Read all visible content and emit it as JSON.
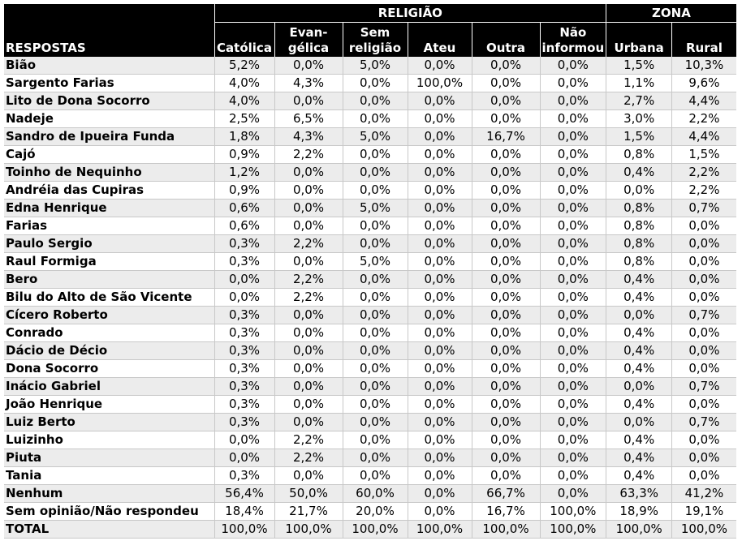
{
  "header": {
    "respostas": "RESPOSTAS",
    "religiao": "RELIGIÃO",
    "zona": "ZONA",
    "columns": [
      [
        "Católica"
      ],
      [
        "Evan-",
        "gélica"
      ],
      [
        "Sem",
        "religião"
      ],
      [
        "Ateu"
      ],
      [
        "Outra"
      ],
      [
        "Não",
        "informou"
      ],
      [
        "Urbana"
      ],
      [
        "Rural"
      ]
    ]
  },
  "rows": [
    {
      "label": "Bião",
      "values": [
        "5,2%",
        "0,0%",
        "5,0%",
        "0,0%",
        "0,0%",
        "0,0%",
        "1,5%",
        "10,3%"
      ]
    },
    {
      "label": "Sargento Farias",
      "values": [
        "4,0%",
        "4,3%",
        "0,0%",
        "100,0%",
        "0,0%",
        "0,0%",
        "1,1%",
        "9,6%"
      ]
    },
    {
      "label": "Lito de Dona Socorro",
      "values": [
        "4,0%",
        "0,0%",
        "0,0%",
        "0,0%",
        "0,0%",
        "0,0%",
        "2,7%",
        "4,4%"
      ]
    },
    {
      "label": "Nadeje",
      "values": [
        "2,5%",
        "6,5%",
        "0,0%",
        "0,0%",
        "0,0%",
        "0,0%",
        "3,0%",
        "2,2%"
      ]
    },
    {
      "label": "Sandro de Ipueira Funda",
      "values": [
        "1,8%",
        "4,3%",
        "5,0%",
        "0,0%",
        "16,7%",
        "0,0%",
        "1,5%",
        "4,4%"
      ]
    },
    {
      "label": "Cajó",
      "values": [
        "0,9%",
        "2,2%",
        "0,0%",
        "0,0%",
        "0,0%",
        "0,0%",
        "0,8%",
        "1,5%"
      ]
    },
    {
      "label": "Toinho de Nequinho",
      "values": [
        "1,2%",
        "0,0%",
        "0,0%",
        "0,0%",
        "0,0%",
        "0,0%",
        "0,4%",
        "2,2%"
      ]
    },
    {
      "label": "Andréia das Cupiras",
      "values": [
        "0,9%",
        "0,0%",
        "0,0%",
        "0,0%",
        "0,0%",
        "0,0%",
        "0,0%",
        "2,2%"
      ]
    },
    {
      "label": "Edna Henrique",
      "values": [
        "0,6%",
        "0,0%",
        "5,0%",
        "0,0%",
        "0,0%",
        "0,0%",
        "0,8%",
        "0,7%"
      ]
    },
    {
      "label": "Farias",
      "values": [
        "0,6%",
        "0,0%",
        "0,0%",
        "0,0%",
        "0,0%",
        "0,0%",
        "0,8%",
        "0,0%"
      ]
    },
    {
      "label": "Paulo Sergio",
      "values": [
        "0,3%",
        "2,2%",
        "0,0%",
        "0,0%",
        "0,0%",
        "0,0%",
        "0,8%",
        "0,0%"
      ]
    },
    {
      "label": "Raul Formiga",
      "values": [
        "0,3%",
        "0,0%",
        "5,0%",
        "0,0%",
        "0,0%",
        "0,0%",
        "0,8%",
        "0,0%"
      ]
    },
    {
      "label": "Bero",
      "values": [
        "0,0%",
        "2,2%",
        "0,0%",
        "0,0%",
        "0,0%",
        "0,0%",
        "0,4%",
        "0,0%"
      ]
    },
    {
      "label": "Bilu do Alto de São Vicente",
      "values": [
        "0,0%",
        "2,2%",
        "0,0%",
        "0,0%",
        "0,0%",
        "0,0%",
        "0,4%",
        "0,0%"
      ]
    },
    {
      "label": "Cícero Roberto",
      "values": [
        "0,3%",
        "0,0%",
        "0,0%",
        "0,0%",
        "0,0%",
        "0,0%",
        "0,0%",
        "0,7%"
      ]
    },
    {
      "label": "Conrado",
      "values": [
        "0,3%",
        "0,0%",
        "0,0%",
        "0,0%",
        "0,0%",
        "0,0%",
        "0,4%",
        "0,0%"
      ]
    },
    {
      "label": "Dácio de Décio",
      "values": [
        "0,3%",
        "0,0%",
        "0,0%",
        "0,0%",
        "0,0%",
        "0,0%",
        "0,4%",
        "0,0%"
      ]
    },
    {
      "label": "Dona Socorro",
      "values": [
        "0,3%",
        "0,0%",
        "0,0%",
        "0,0%",
        "0,0%",
        "0,0%",
        "0,4%",
        "0,0%"
      ]
    },
    {
      "label": "Inácio Gabriel",
      "values": [
        "0,3%",
        "0,0%",
        "0,0%",
        "0,0%",
        "0,0%",
        "0,0%",
        "0,0%",
        "0,7%"
      ]
    },
    {
      "label": "João Henrique",
      "values": [
        "0,3%",
        "0,0%",
        "0,0%",
        "0,0%",
        "0,0%",
        "0,0%",
        "0,4%",
        "0,0%"
      ]
    },
    {
      "label": "Luiz Berto",
      "values": [
        "0,3%",
        "0,0%",
        "0,0%",
        "0,0%",
        "0,0%",
        "0,0%",
        "0,0%",
        "0,7%"
      ]
    },
    {
      "label": "Luizinho",
      "values": [
        "0,0%",
        "2,2%",
        "0,0%",
        "0,0%",
        "0,0%",
        "0,0%",
        "0,4%",
        "0,0%"
      ]
    },
    {
      "label": "Piuta",
      "values": [
        "0,0%",
        "2,2%",
        "0,0%",
        "0,0%",
        "0,0%",
        "0,0%",
        "0,4%",
        "0,0%"
      ]
    },
    {
      "label": "Tania",
      "values": [
        "0,3%",
        "0,0%",
        "0,0%",
        "0,0%",
        "0,0%",
        "0,0%",
        "0,4%",
        "0,0%"
      ]
    },
    {
      "label": "Nenhum",
      "values": [
        "56,4%",
        "50,0%",
        "60,0%",
        "0,0%",
        "66,7%",
        "0,0%",
        "63,3%",
        "41,2%"
      ]
    },
    {
      "label": "Sem opinião/Não respondeu",
      "values": [
        "18,4%",
        "21,7%",
        "20,0%",
        "0,0%",
        "16,7%",
        "100,0%",
        "18,9%",
        "19,1%"
      ]
    },
    {
      "label": "TOTAL",
      "values": [
        "100,0%",
        "100,0%",
        "100,0%",
        "100,0%",
        "100,0%",
        "100,0%",
        "100,0%",
        "100,0%"
      ]
    }
  ]
}
